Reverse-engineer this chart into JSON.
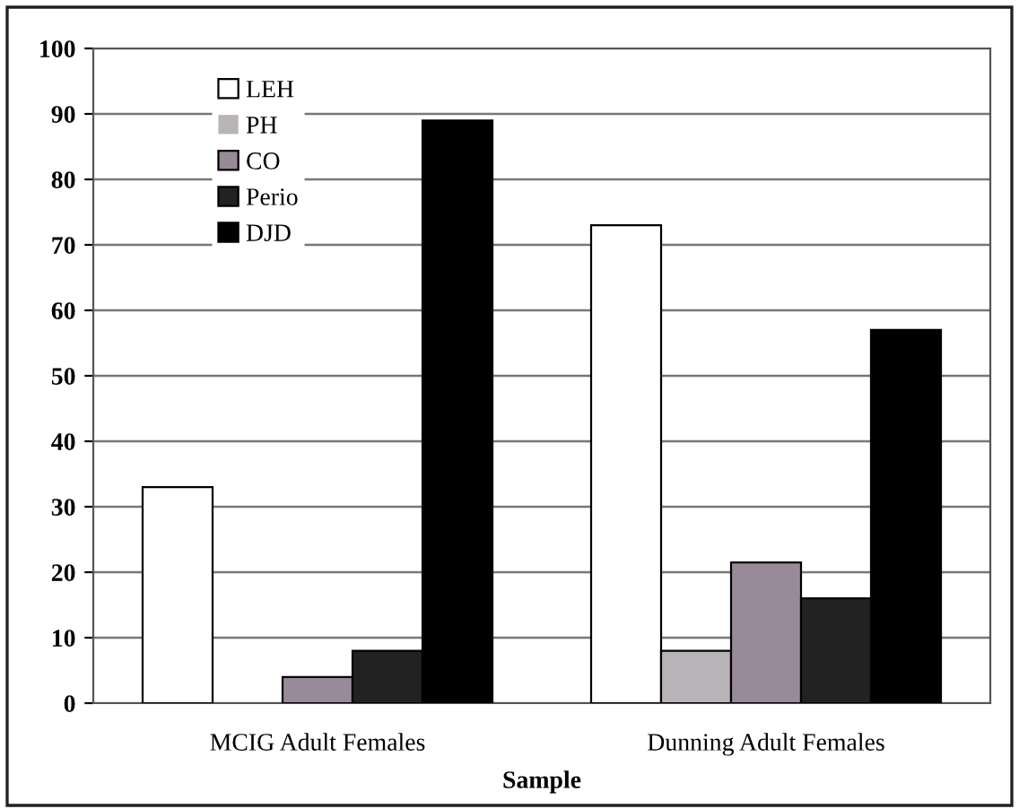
{
  "chart_data": {
    "type": "bar",
    "xlabel": "Sample",
    "categories": [
      "MCIG Adult Females",
      "Dunning Adult Females"
    ],
    "series": [
      {
        "name": "LEH",
        "color": "#ffffff",
        "values": [
          33,
          73
        ]
      },
      {
        "name": "PH",
        "color": "#b8b4b8",
        "values": [
          0,
          8
        ]
      },
      {
        "name": "CO",
        "color": "#988a98",
        "values": [
          4,
          21.5
        ]
      },
      {
        "name": "Perio",
        "color": "#222222",
        "values": [
          8,
          16
        ]
      },
      {
        "name": "DJD",
        "color": "#000000",
        "values": [
          89,
          57
        ]
      }
    ],
    "ylim": [
      0,
      100
    ],
    "yticks": [
      0,
      10,
      20,
      30,
      40,
      50,
      60,
      70,
      80,
      90,
      100
    ],
    "grid": "y",
    "legend": "top left"
  }
}
